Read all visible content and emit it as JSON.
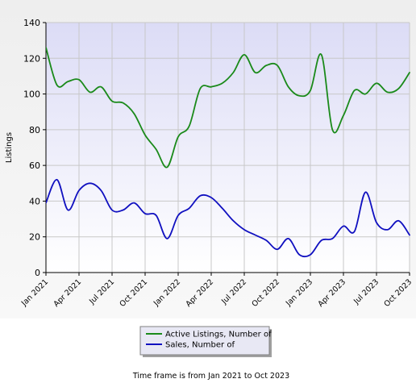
{
  "chart_data": {
    "type": "line",
    "title": "",
    "xlabel": "",
    "ylabel": "Listings",
    "ylim": [
      0,
      140
    ],
    "y_ticks": [
      0,
      20,
      40,
      60,
      80,
      100,
      120,
      140
    ],
    "x_range": [
      "Jan 2021",
      "Oct 2023"
    ],
    "x_tick_labels": [
      "Jan 2021",
      "Apr 2021",
      "Jul 2021",
      "Oct 2021",
      "Jan 2022",
      "Apr 2022",
      "Jul 2022",
      "Oct 2022",
      "Jan 2023",
      "Apr 2023",
      "Jul 2023",
      "Oct 2023"
    ],
    "x": [
      "Jan 2021",
      "Feb 2021",
      "Mar 2021",
      "Apr 2021",
      "May 2021",
      "Jun 2021",
      "Jul 2021",
      "Aug 2021",
      "Sep 2021",
      "Oct 2021",
      "Nov 2021",
      "Dec 2021",
      "Jan 2022",
      "Feb 2022",
      "Mar 2022",
      "Apr 2022",
      "May 2022",
      "Jun 2022",
      "Jul 2022",
      "Aug 2022",
      "Sep 2022",
      "Oct 2022",
      "Nov 2022",
      "Dec 2022",
      "Jan 2023",
      "Feb 2023",
      "Mar 2023",
      "Apr 2023",
      "May 2023",
      "Jun 2023",
      "Jul 2023",
      "Aug 2023",
      "Sep 2023",
      "Oct 2023"
    ],
    "grid": true,
    "legend_position": "bottom-center",
    "series": [
      {
        "name": "Active Listings, Number of",
        "color": "#1a8a1a",
        "values": [
          126,
          105,
          107,
          108,
          101,
          104,
          96,
          95,
          89,
          77,
          69,
          59,
          76,
          82,
          103,
          104,
          106,
          112,
          122,
          112,
          116,
          116,
          104,
          99,
          102,
          122,
          80,
          88,
          102,
          100,
          106,
          101,
          103,
          112
        ]
      },
      {
        "name": "Sales, Number of",
        "color": "#1010c0",
        "values": [
          39,
          52,
          35,
          46,
          50,
          46,
          35,
          35,
          39,
          33,
          32,
          19,
          32,
          36,
          43,
          42,
          36,
          29,
          24,
          21,
          18,
          13,
          19,
          10,
          10,
          18,
          19,
          26,
          23,
          45,
          28,
          24,
          29,
          21
        ]
      }
    ]
  },
  "footer": {
    "note": "Time frame is from Jan 2021 to Oct 2023"
  }
}
